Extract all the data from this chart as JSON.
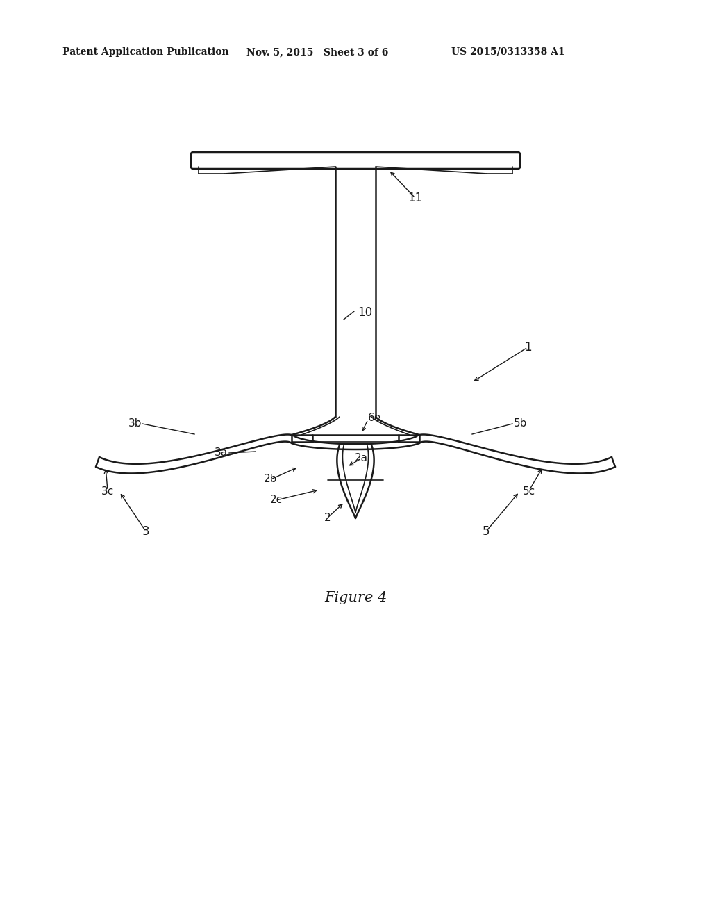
{
  "bg_color": "#ffffff",
  "line_color": "#1a1a1a",
  "header_left": "Patent Application Publication",
  "header_mid": "Nov. 5, 2015   Sheet 3 of 6",
  "header_right": "US 2015/0313358 A1",
  "figure_label": "Figure 4"
}
